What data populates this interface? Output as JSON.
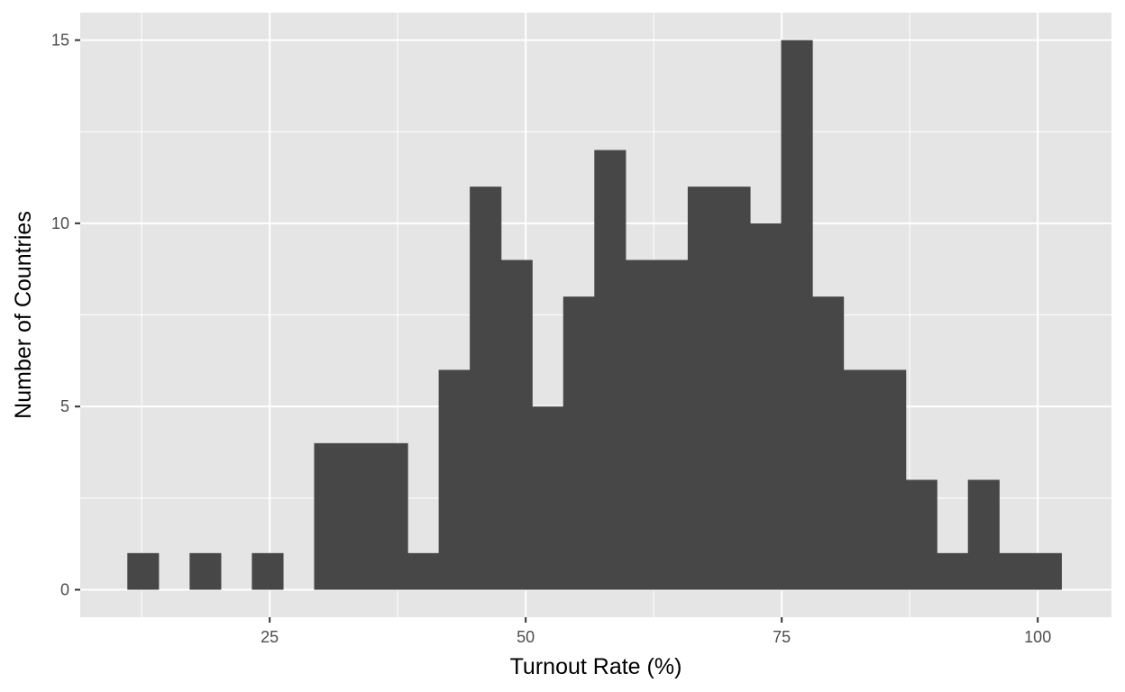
{
  "chart_data": {
    "type": "bar",
    "subtype": "histogram",
    "title": "",
    "xlabel": "Turnout Rate (%)",
    "ylabel": "Number of Countries",
    "xlim": [
      6.5,
      107.2
    ],
    "ylim": [
      -0.75,
      15.75
    ],
    "x_ticks": [
      25,
      50,
      75,
      100
    ],
    "y_ticks": [
      0,
      5,
      10,
      15
    ],
    "bin_width": 3.04,
    "bins_start": 11.1,
    "counts": [
      1,
      0,
      1,
      0,
      1,
      0,
      4,
      4,
      4,
      1,
      6,
      11,
      9,
      5,
      8,
      12,
      9,
      9,
      11,
      11,
      10,
      15,
      8,
      6,
      6,
      3,
      1,
      3,
      1,
      1
    ],
    "grid": true,
    "legend": "none",
    "colors": {
      "panel": "#e5e5e5",
      "grid": "#ffffff",
      "bar": "#474747"
    }
  }
}
